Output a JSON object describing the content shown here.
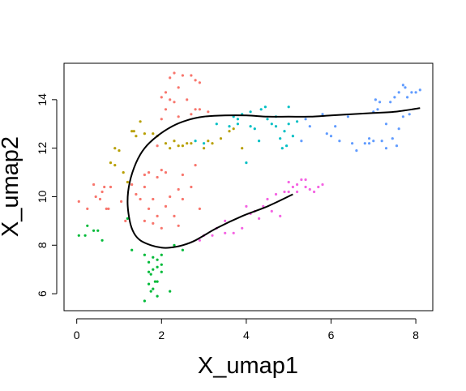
{
  "chart_data": {
    "type": "scatter",
    "xlabel": "X_umap1",
    "ylabel": "X_umap2",
    "xlim": [
      -0.3,
      8.4
    ],
    "ylim": [
      5.3,
      15.5
    ],
    "x_ticks": [
      0,
      2,
      4,
      6,
      8
    ],
    "y_ticks": [
      6,
      8,
      10,
      12,
      14
    ],
    "grid": false,
    "legend": "none",
    "series": [
      {
        "color": "#F8766D",
        "points": [
          [
            1.3,
            10.5
          ],
          [
            1.4,
            10.1
          ],
          [
            1.5,
            9.9
          ],
          [
            1.6,
            10.4
          ],
          [
            1.7,
            9.5
          ],
          [
            1.8,
            9.9
          ],
          [
            1.9,
            10.8
          ],
          [
            1.9,
            9.2
          ],
          [
            2.0,
            8.7
          ],
          [
            2.1,
            9.6
          ],
          [
            2.2,
            10.0
          ],
          [
            2.3,
            9.2
          ],
          [
            2.4,
            8.8
          ],
          [
            2.5,
            9.9
          ],
          [
            1.6,
            9.0
          ],
          [
            1.8,
            8.9
          ],
          [
            2.0,
            11.1
          ],
          [
            2.1,
            11.0
          ],
          [
            2.4,
            10.3
          ],
          [
            2.5,
            10.9
          ],
          [
            1.7,
            11.0
          ],
          [
            1.6,
            10.9
          ],
          [
            2.7,
            10.4
          ],
          [
            2.8,
            11.3
          ],
          [
            2.9,
            9.5
          ],
          [
            1.9,
            12.1
          ],
          [
            2.0,
            13.2
          ],
          [
            2.1,
            13.6
          ],
          [
            2.2,
            14.9
          ],
          [
            2.3,
            15.1
          ],
          [
            2.4,
            14.5
          ],
          [
            2.5,
            15.0
          ],
          [
            2.7,
            15.0
          ],
          [
            2.8,
            14.8
          ],
          [
            2.9,
            14.7
          ],
          [
            2.6,
            14.0
          ],
          [
            2.3,
            13.9
          ],
          [
            2.7,
            13.4
          ],
          [
            2.8,
            13.6
          ],
          [
            2.9,
            13.6
          ],
          [
            3.1,
            13.5
          ],
          [
            2.0,
            14.1
          ],
          [
            2.1,
            14.3
          ],
          [
            2.2,
            14.0
          ],
          [
            2.4,
            13.3
          ],
          [
            0.05,
            9.8
          ],
          [
            0.25,
            9.5
          ],
          [
            0.4,
            10.5
          ],
          [
            0.45,
            10.0
          ],
          [
            0.55,
            9.9
          ],
          [
            0.6,
            10.2
          ],
          [
            0.65,
            10.4
          ],
          [
            0.7,
            9.5
          ],
          [
            0.75,
            9.5
          ],
          [
            0.8,
            10.4
          ],
          [
            1.05,
            9.8
          ],
          [
            1.15,
            9.0
          ]
        ]
      },
      {
        "color": "#B79F00",
        "points": [
          [
            0.8,
            11.4
          ],
          [
            0.9,
            11.3
          ],
          [
            0.9,
            12.0
          ],
          [
            1.0,
            11.9
          ],
          [
            1.1,
            11.0
          ],
          [
            1.2,
            10.6
          ],
          [
            1.3,
            12.7
          ],
          [
            1.35,
            12.7
          ],
          [
            1.4,
            12.5
          ],
          [
            1.5,
            13.1
          ],
          [
            1.6,
            12.6
          ],
          [
            1.8,
            12.6
          ],
          [
            1.9,
            12.5
          ],
          [
            2.1,
            12.2
          ],
          [
            2.2,
            12.0
          ],
          [
            2.3,
            12.3
          ],
          [
            2.4,
            12.1
          ],
          [
            2.5,
            12.1
          ],
          [
            2.6,
            12.2
          ],
          [
            2.7,
            12.2
          ],
          [
            3.1,
            12.3
          ],
          [
            3.2,
            12.2
          ],
          [
            3.4,
            12.4
          ],
          [
            3.6,
            12.7
          ],
          [
            3.7,
            12.8
          ],
          [
            3.9,
            12.0
          ],
          [
            3.0,
            12.0
          ]
        ]
      },
      {
        "color": "#00BA38",
        "points": [
          [
            0.05,
            8.4
          ],
          [
            0.2,
            8.4
          ],
          [
            0.25,
            8.8
          ],
          [
            0.4,
            8.6
          ],
          [
            0.5,
            8.6
          ],
          [
            0.6,
            8.2
          ],
          [
            1.2,
            9.1
          ],
          [
            1.3,
            7.8
          ],
          [
            1.6,
            7.6
          ],
          [
            1.7,
            7.3
          ],
          [
            1.75,
            6.8
          ],
          [
            1.8,
            7.0
          ],
          [
            1.9,
            7.4
          ],
          [
            2.0,
            6.9
          ],
          [
            1.7,
            6.4
          ],
          [
            1.8,
            6.2
          ],
          [
            1.9,
            5.9
          ],
          [
            1.6,
            5.7
          ],
          [
            1.7,
            6.9
          ],
          [
            1.8,
            7.5
          ],
          [
            1.9,
            7.1
          ],
          [
            2.0,
            7.2
          ],
          [
            1.75,
            6.1
          ],
          [
            1.85,
            6.5
          ],
          [
            2.2,
            6.1
          ],
          [
            2.3,
            8.0
          ],
          [
            2.5,
            7.8
          ],
          [
            2.0,
            7.6
          ],
          [
            1.9,
            6.5
          ]
        ]
      },
      {
        "color": "#00BFC4",
        "points": [
          [
            2.8,
            12.3
          ],
          [
            3.0,
            12.2
          ],
          [
            3.3,
            13.0
          ],
          [
            3.6,
            12.9
          ],
          [
            3.7,
            13.3
          ],
          [
            3.8,
            13.2
          ],
          [
            4.0,
            11.4
          ],
          [
            4.1,
            12.9
          ],
          [
            4.2,
            12.8
          ],
          [
            4.3,
            12.3
          ],
          [
            4.35,
            13.6
          ],
          [
            4.45,
            13.7
          ],
          [
            4.5,
            13.2
          ],
          [
            4.6,
            13.0
          ],
          [
            4.7,
            12.9
          ],
          [
            4.8,
            12.4
          ],
          [
            4.9,
            12.7
          ],
          [
            5.0,
            13.0
          ],
          [
            4.85,
            12.0
          ],
          [
            4.95,
            12.1
          ],
          [
            5.1,
            12.5
          ],
          [
            5.2,
            13.1
          ],
          [
            4.1,
            13.5
          ],
          [
            3.9,
            13.4
          ],
          [
            3.8,
            13.0
          ],
          [
            5.0,
            13.7
          ],
          [
            4.7,
            13.3
          ]
        ]
      },
      {
        "color": "#619CFF",
        "points": [
          [
            5.8,
            13.4
          ],
          [
            5.9,
            12.6
          ],
          [
            6.0,
            12.5
          ],
          [
            6.2,
            12.3
          ],
          [
            6.4,
            13.3
          ],
          [
            6.5,
            12.2
          ],
          [
            6.6,
            11.9
          ],
          [
            6.8,
            12.2
          ],
          [
            6.9,
            12.4
          ],
          [
            7.0,
            13.5
          ],
          [
            7.1,
            13.6
          ],
          [
            7.2,
            12.3
          ],
          [
            7.3,
            12.0
          ],
          [
            7.4,
            13.9
          ],
          [
            7.5,
            14.1
          ],
          [
            7.6,
            14.3
          ],
          [
            7.7,
            14.6
          ],
          [
            7.75,
            14.5
          ],
          [
            7.8,
            14.1
          ],
          [
            7.85,
            13.4
          ],
          [
            7.9,
            14.3
          ],
          [
            8.0,
            14.3
          ],
          [
            8.1,
            14.4
          ],
          [
            7.05,
            14.0
          ],
          [
            7.15,
            13.9
          ],
          [
            7.45,
            12.4
          ],
          [
            7.55,
            12.1
          ],
          [
            7.6,
            12.8
          ],
          [
            7.3,
            13.0
          ],
          [
            6.9,
            12.2
          ],
          [
            7.0,
            12.3
          ],
          [
            5.5,
            12.9
          ],
          [
            5.3,
            12.3
          ],
          [
            5.4,
            13.2
          ],
          [
            6.1,
            12.9
          ],
          [
            7.7,
            13.3
          ]
        ]
      },
      {
        "color": "#F564E3",
        "points": [
          [
            2.9,
            8.2
          ],
          [
            3.0,
            8.4
          ],
          [
            3.2,
            8.4
          ],
          [
            3.5,
            8.5
          ],
          [
            3.7,
            8.5
          ],
          [
            3.9,
            8.7
          ],
          [
            4.0,
            9.6
          ],
          [
            4.1,
            9.3
          ],
          [
            4.2,
            9.4
          ],
          [
            4.3,
            9.1
          ],
          [
            4.4,
            9.6
          ],
          [
            4.6,
            9.4
          ],
          [
            4.8,
            9.2
          ],
          [
            4.9,
            10.2
          ],
          [
            5.0,
            10.2
          ],
          [
            5.1,
            10.4
          ],
          [
            5.2,
            10.5
          ],
          [
            5.3,
            10.7
          ],
          [
            5.4,
            10.7
          ],
          [
            5.5,
            10.3
          ],
          [
            5.6,
            10.2
          ],
          [
            5.7,
            10.4
          ],
          [
            5.8,
            10.5
          ],
          [
            5.0,
            10.6
          ],
          [
            4.7,
            10.1
          ],
          [
            5.2,
            10.2
          ],
          [
            5.4,
            10.4
          ],
          [
            4.5,
            9.9
          ],
          [
            3.5,
            9.0
          ],
          [
            3.3,
            8.7
          ]
        ]
      }
    ],
    "curve": {
      "color": "#000000",
      "points": [
        [
          5.1,
          10.1
        ],
        [
          4.5,
          9.6
        ],
        [
          3.9,
          9.2
        ],
        [
          3.3,
          8.7
        ],
        [
          2.8,
          8.2
        ],
        [
          2.5,
          8.0
        ],
        [
          2.2,
          7.9
        ],
        [
          2.0,
          7.9
        ],
        [
          1.75,
          8.0
        ],
        [
          1.5,
          8.2
        ],
        [
          1.35,
          8.5
        ],
        [
          1.25,
          9.0
        ],
        [
          1.2,
          9.8
        ],
        [
          1.25,
          10.6
        ],
        [
          1.4,
          11.4
        ],
        [
          1.6,
          12.0
        ],
        [
          1.9,
          12.5
        ],
        [
          2.25,
          12.9
        ],
        [
          2.6,
          13.15
        ],
        [
          3.0,
          13.3
        ],
        [
          3.5,
          13.35
        ],
        [
          4.0,
          13.35
        ],
        [
          4.5,
          13.3
        ],
        [
          5.0,
          13.3
        ],
        [
          5.5,
          13.3
        ],
        [
          6.0,
          13.35
        ],
        [
          6.5,
          13.4
        ],
        [
          7.0,
          13.45
        ],
        [
          7.5,
          13.5
        ],
        [
          8.1,
          13.65
        ]
      ]
    }
  }
}
